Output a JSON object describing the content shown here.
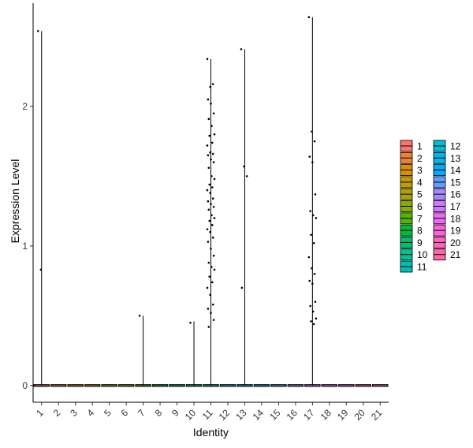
{
  "chart_data": {
    "type": "violin",
    "xlabel": "Identity",
    "ylabel": "Expression Level",
    "ylim": [
      -0.12,
      2.74
    ],
    "yticks": [
      0,
      1,
      2
    ],
    "categories": [
      "1",
      "2",
      "3",
      "4",
      "5",
      "6",
      "7",
      "8",
      "9",
      "10",
      "11",
      "12",
      "13",
      "14",
      "15",
      "16",
      "17",
      "18",
      "19",
      "20",
      "21"
    ],
    "colors": [
      "#F8766D",
      "#EB8335",
      "#DA8F00",
      "#C49A00",
      "#A9A400",
      "#86AC00",
      "#53B400",
      "#00BA38",
      "#00BE6D",
      "#00C094",
      "#00C0B6",
      "#00BDD5",
      "#00B6EB",
      "#00ACFC",
      "#619CFF",
      "#A58AFF",
      "#CF78FF",
      "#EA6AF1",
      "#FA62DB",
      "#FF61C1",
      "#FF67A4"
    ],
    "violin_top": [
      2.54,
      0,
      0,
      0,
      0,
      0,
      0.5,
      0,
      0,
      0.46,
      2.34,
      0,
      2.41,
      0,
      0,
      0,
      2.64,
      0,
      0,
      0,
      0
    ],
    "points": [
      {
        "group": "1",
        "values": [
          2.54,
          0.83
        ]
      },
      {
        "group": "7",
        "values": [
          0.5
        ]
      },
      {
        "group": "10",
        "values": [
          0.45
        ]
      },
      {
        "group": "11",
        "values": [
          2.34,
          2.14,
          2.16,
          2.05,
          2.02,
          1.95,
          1.91,
          1.86,
          1.8,
          1.79,
          1.74,
          1.72,
          1.67,
          1.66,
          1.65,
          1.62,
          1.6,
          1.56,
          1.5,
          1.48,
          1.44,
          1.42,
          1.4,
          1.38,
          1.34,
          1.32,
          1.3,
          1.28,
          1.26,
          1.22,
          1.2,
          1.18,
          1.15,
          1.12,
          1.1,
          1.06,
          1.03,
          0.98,
          0.93,
          0.88,
          0.85,
          0.83,
          0.78,
          0.74,
          0.7,
          0.65,
          0.58,
          0.55,
          0.52,
          0.47,
          0.42
        ]
      },
      {
        "group": "13",
        "values": [
          2.41,
          1.57,
          1.5,
          0.7
        ]
      },
      {
        "group": "17",
        "values": [
          2.64,
          1.82,
          1.75,
          1.64,
          1.6,
          1.37,
          1.25,
          1.22,
          1.2,
          1.08,
          1.02,
          0.92,
          0.84,
          0.8,
          0.75,
          0.73,
          0.6,
          0.57,
          0.53,
          0.48,
          0.46,
          0.44
        ]
      }
    ],
    "legend": {
      "placement": "right",
      "entries": [
        "1",
        "2",
        "3",
        "4",
        "5",
        "6",
        "7",
        "8",
        "9",
        "10",
        "11",
        "12",
        "13",
        "14",
        "15",
        "16",
        "17",
        "18",
        "19",
        "20",
        "21"
      ]
    }
  }
}
